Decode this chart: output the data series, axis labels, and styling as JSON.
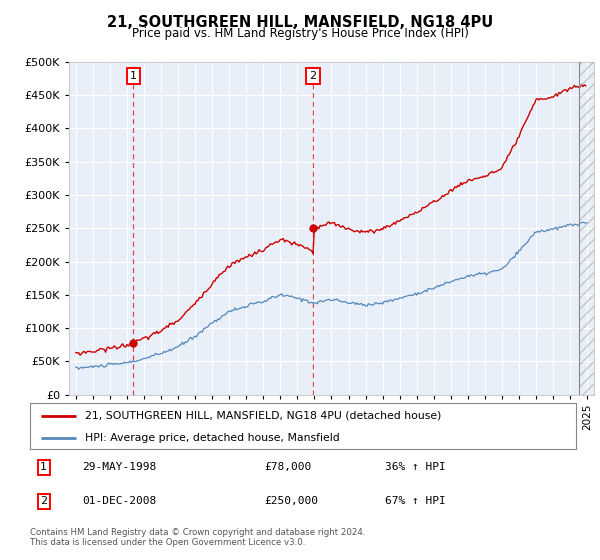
{
  "title": "21, SOUTHGREEN HILL, MANSFIELD, NG18 4PU",
  "subtitle": "Price paid vs. HM Land Registry's House Price Index (HPI)",
  "legend_line1": "21, SOUTHGREEN HILL, MANSFIELD, NG18 4PU (detached house)",
  "legend_line2": "HPI: Average price, detached house, Mansfield",
  "footer": "Contains HM Land Registry data © Crown copyright and database right 2024.\nThis data is licensed under the Open Government Licence v3.0.",
  "sale1_date": "29-MAY-1998",
  "sale1_price": 78000,
  "sale1_label": "36% ↑ HPI",
  "sale2_date": "01-DEC-2008",
  "sale2_price": 250000,
  "sale2_label": "67% ↑ HPI",
  "sale1_x": 1998.37,
  "sale2_x": 2008.92,
  "sale1_y": 78000,
  "sale2_y": 250000,
  "hpi_color": "#5588bb",
  "price_color": "#cc0000",
  "background_color": "#e8eff8",
  "plot_bg": "#ffffff",
  "ylim": [
    0,
    500000
  ],
  "yticks": [
    0,
    50000,
    100000,
    150000,
    200000,
    250000,
    300000,
    350000,
    400000,
    450000,
    500000
  ],
  "xlim": [
    1994.6,
    2025.4
  ],
  "xticks": [
    1995,
    1996,
    1997,
    1998,
    1999,
    2000,
    2001,
    2002,
    2003,
    2004,
    2005,
    2006,
    2007,
    2008,
    2009,
    2010,
    2011,
    2012,
    2013,
    2014,
    2015,
    2016,
    2017,
    2018,
    2019,
    2020,
    2021,
    2022,
    2023,
    2024,
    2025
  ],
  "hatch_start": 2024.5,
  "hatch_end": 2025.4
}
